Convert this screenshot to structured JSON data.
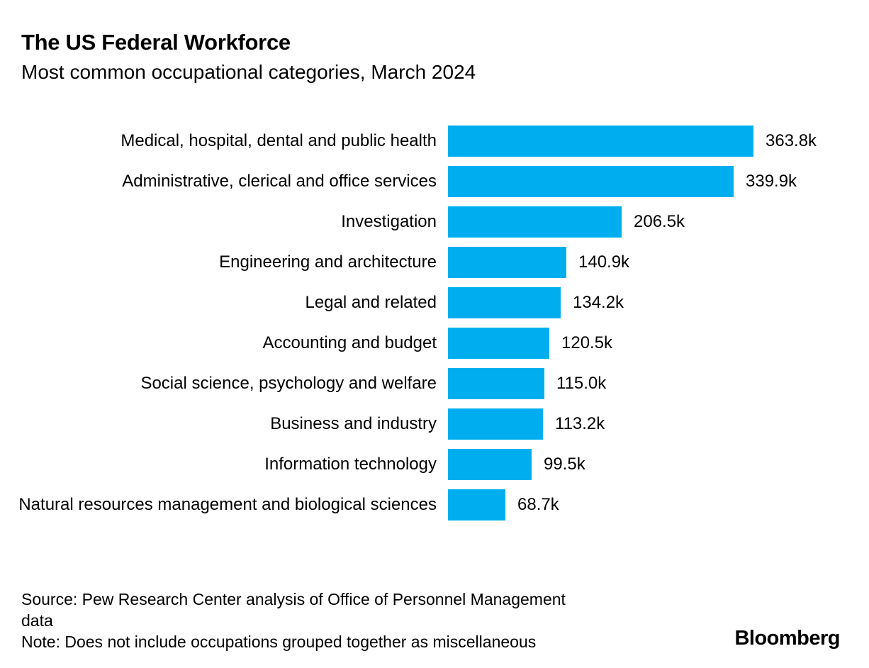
{
  "header": {
    "title": "The US Federal Workforce",
    "subtitle": "Most common occupational categories, March 2024"
  },
  "chart_data": {
    "type": "bar",
    "orientation": "horizontal",
    "title": "The US Federal Workforce",
    "subtitle": "Most common occupational categories, March 2024",
    "categories": [
      "Medical, hospital, dental and public health",
      "Administrative, clerical and office services",
      "Investigation",
      "Engineering and architecture",
      "Legal and related",
      "Accounting and budget",
      "Social science, psychology and welfare",
      "Business and industry",
      "Information technology",
      "Natural resources management and biological sciences"
    ],
    "values": [
      363.8,
      339.9,
      206.5,
      140.9,
      134.2,
      120.5,
      115.0,
      113.2,
      99.5,
      68.7
    ],
    "value_labels": [
      "363.8k",
      "339.9k",
      "206.5k",
      "140.9k",
      "134.2k",
      "120.5k",
      "115.0k",
      "113.2k",
      "99.5k",
      "68.7k"
    ],
    "unit": "thousands of employees",
    "xlim": [
      0,
      363.8
    ],
    "bar_color": "#00AEEF",
    "grid": false,
    "legend": false
  },
  "footer": {
    "source": "Source: Pew Research Center analysis of Office of Personnel Management data",
    "note": "Note: Does not include occupations grouped together as miscellaneous",
    "brand": "Bloomberg"
  }
}
